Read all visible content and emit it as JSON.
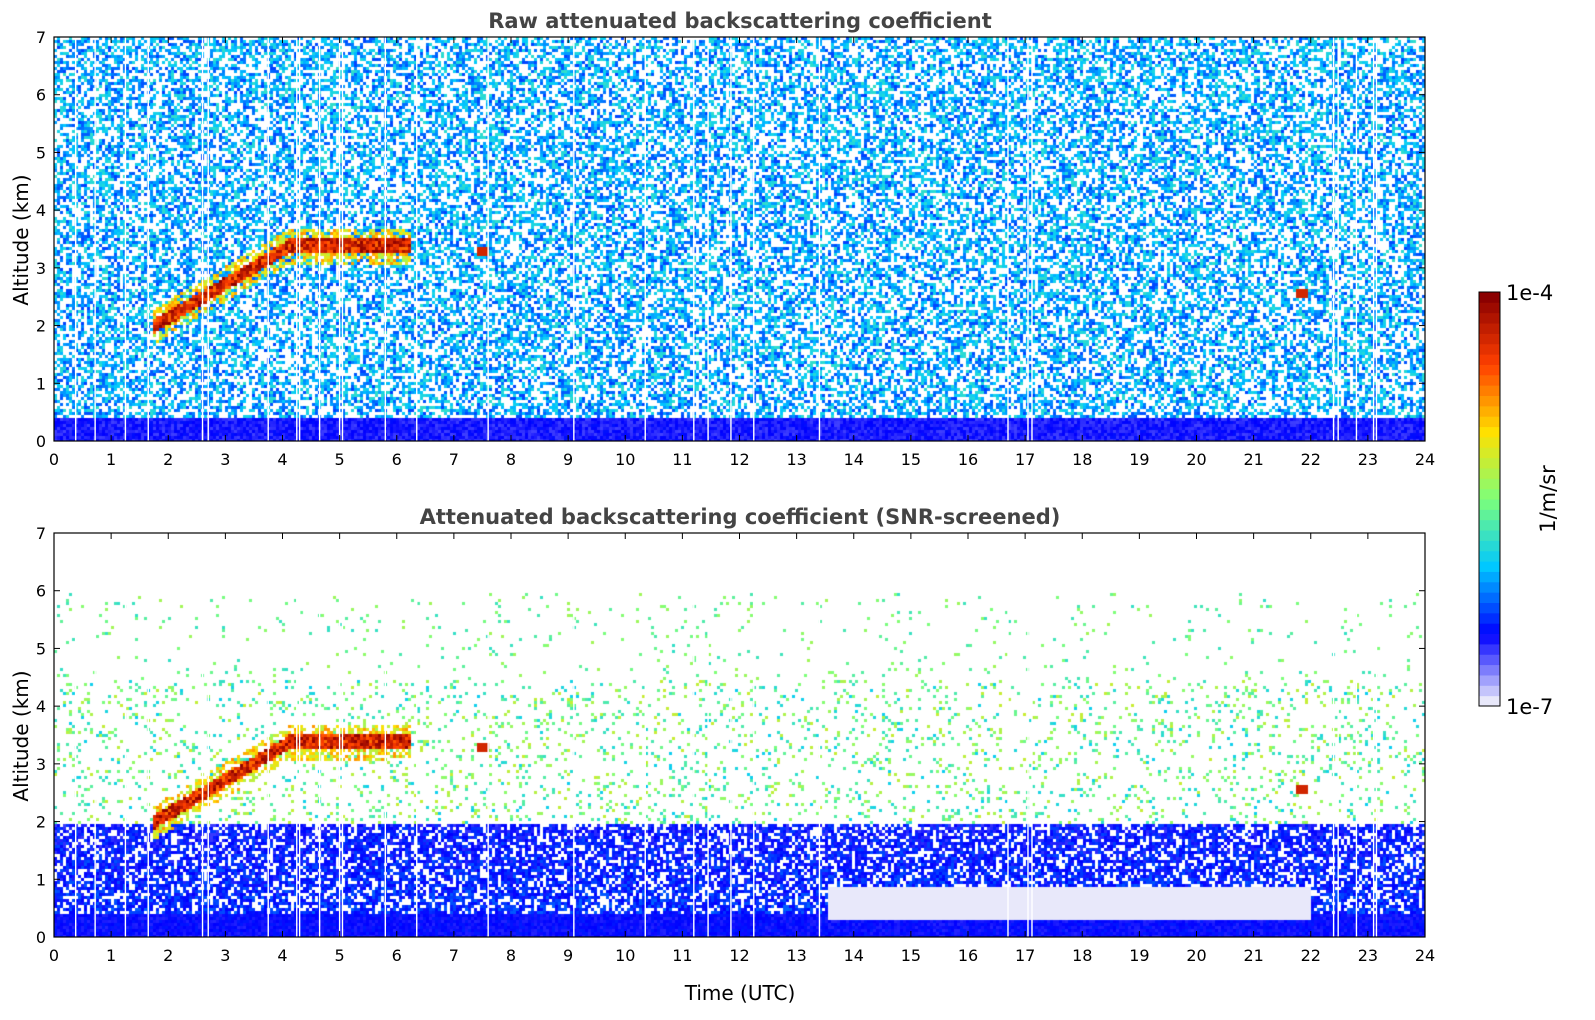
{
  "chart_data": [
    {
      "type": "heatmap",
      "title": "Raw attenuated backscattering coefficient",
      "xlabel": "",
      "ylabel": "Altitude (km)",
      "xlim": [
        0,
        24
      ],
      "ylim": [
        0,
        7
      ],
      "xticks": [
        "0",
        "1",
        "2",
        "3",
        "4",
        "5",
        "6",
        "7",
        "8",
        "9",
        "10",
        "11",
        "12",
        "13",
        "14",
        "15",
        "16",
        "17",
        "18",
        "19",
        "20",
        "21",
        "22",
        "23",
        "24"
      ],
      "yticks": [
        "0",
        "1",
        "2",
        "3",
        "4",
        "5",
        "6",
        "7"
      ],
      "features": [
        {
          "kind": "cloud_layer",
          "time_range": [
            1.7,
            6.2
          ],
          "altitude_km": [
            2.0,
            3.4
          ],
          "level": "high"
        },
        {
          "kind": "cloud_patch",
          "time": 7.5,
          "altitude_km": 3.3,
          "level": "high"
        },
        {
          "kind": "cloud_patch",
          "time": 21.8,
          "altitude_km": 2.6,
          "level": "high"
        },
        {
          "kind": "boundary_layer",
          "time_range": [
            0,
            24
          ],
          "altitude_km": [
            0,
            0.5
          ],
          "level": "low"
        }
      ],
      "data_gaps_utc": [
        0.38,
        0.72,
        1.25,
        1.65,
        2.6,
        2.7,
        3.75,
        4.25,
        4.3,
        4.65,
        5.0,
        5.05,
        5.8,
        6.35,
        7.6,
        9.1,
        10.35,
        11.2,
        11.45,
        11.85,
        12.25,
        13.4,
        16.7,
        17.05,
        17.12,
        22.4,
        22.48,
        22.8,
        23.1,
        23.15
      ]
    },
    {
      "type": "heatmap",
      "title": "Attenuated backscattering coefficient (SNR-screened)",
      "xlabel": "Time (UTC)",
      "ylabel": "Altitude (km)",
      "xlim": [
        0,
        24
      ],
      "ylim": [
        0,
        7
      ],
      "xticks": [
        "0",
        "1",
        "2",
        "3",
        "4",
        "5",
        "6",
        "7",
        "8",
        "9",
        "10",
        "11",
        "12",
        "13",
        "14",
        "15",
        "16",
        "17",
        "18",
        "19",
        "20",
        "21",
        "22",
        "23",
        "24"
      ],
      "yticks": [
        "0",
        "1",
        "2",
        "3",
        "4",
        "5",
        "6",
        "7"
      ],
      "features": [
        {
          "kind": "cloud_layer",
          "time_range": [
            1.7,
            6.2
          ],
          "altitude_km": [
            2.0,
            3.4
          ],
          "level": "high"
        },
        {
          "kind": "cloud_patch",
          "time": 7.5,
          "altitude_km": 3.3,
          "level": "high"
        },
        {
          "kind": "cloud_patch",
          "time": 21.8,
          "altitude_km": 2.6,
          "level": "high"
        },
        {
          "kind": "aerosol_layer",
          "time_range": [
            0,
            24
          ],
          "altitude_km": [
            0,
            2.0
          ],
          "level": "low"
        },
        {
          "kind": "clear_pocket",
          "time_range": [
            13.5,
            22.0
          ],
          "altitude_km": [
            0.3,
            0.9
          ],
          "level": "very_low"
        }
      ],
      "data_gaps_utc": [
        0.38,
        0.72,
        1.25,
        1.65,
        2.6,
        2.7,
        3.75,
        4.25,
        4.3,
        4.65,
        5.0,
        5.05,
        5.8,
        6.35,
        7.6,
        9.1,
        10.35,
        11.2,
        11.45,
        11.85,
        12.25,
        13.4,
        16.7,
        17.05,
        17.12,
        22.4,
        22.48,
        22.8,
        23.1,
        23.15
      ]
    }
  ],
  "colorbar": {
    "label": "1/m/sr",
    "max_label": "1e-4",
    "min_label": "1e-7",
    "scale": "log",
    "colors": [
      "#e8e8fa",
      "#0000ff",
      "#00c8ff",
      "#7dff7a",
      "#ffe000",
      "#ff4000",
      "#8b0000"
    ]
  }
}
